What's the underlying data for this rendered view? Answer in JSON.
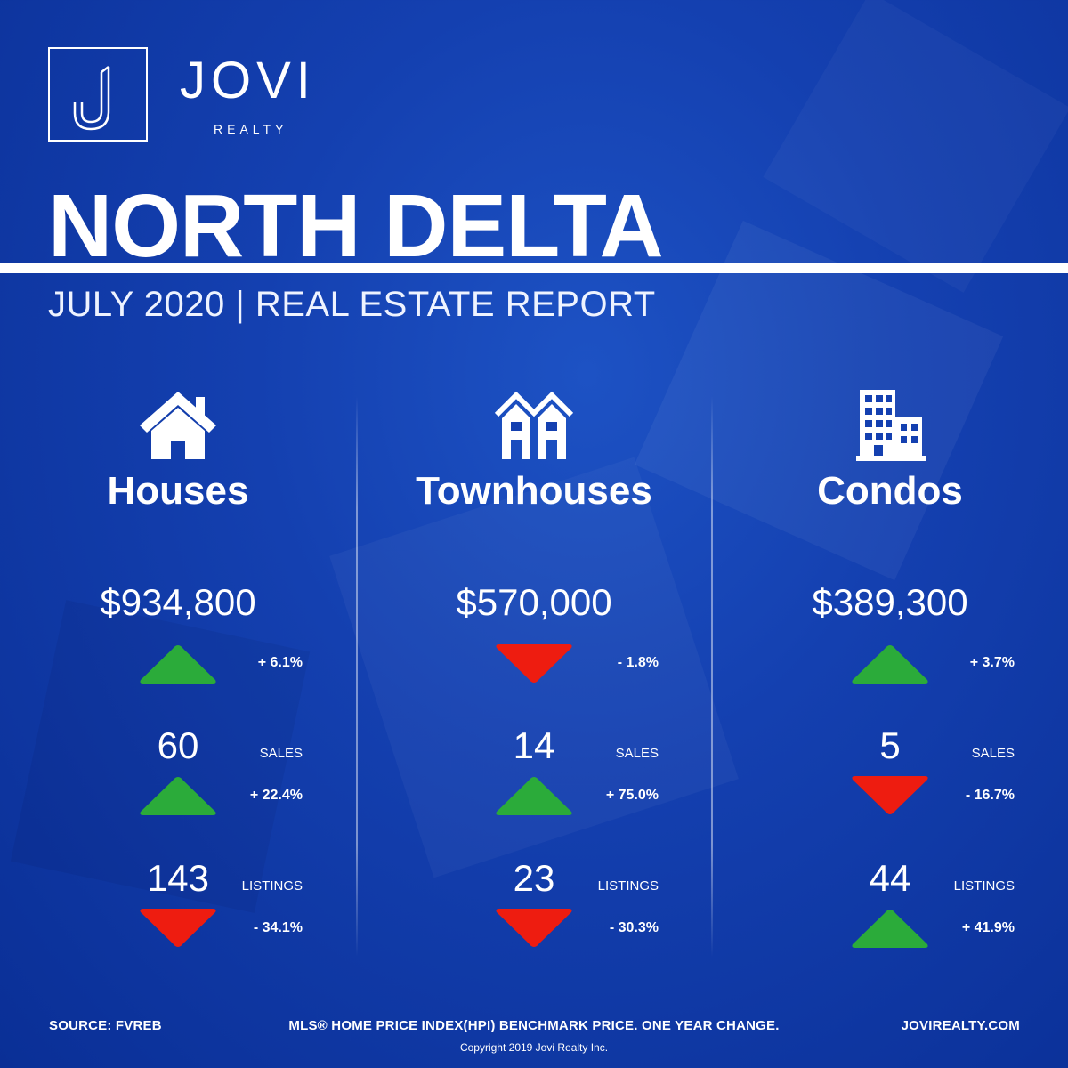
{
  "brand": {
    "name": "JOVI",
    "subtitle": "REALTY"
  },
  "title": "NORTH DELTA",
  "subtitle": "JULY 2020 | REAL ESTATE REPORT",
  "colors": {
    "background": "#1440b0",
    "up": "#2bab3a",
    "down": "#ee1c10",
    "text": "#ffffff"
  },
  "columns": [
    {
      "name": "Houses",
      "icon": "house-icon",
      "price": "$934,800",
      "price_change": "+ 6.1%",
      "price_dir": "up",
      "sales": "60",
      "sales_label": "SALES",
      "sales_change": "+ 22.4%",
      "sales_dir": "up",
      "listings": "143",
      "listings_label": "LISTINGS",
      "listings_change": "- 34.1%",
      "listings_dir": "down"
    },
    {
      "name": "Townhouses",
      "icon": "townhouse-icon",
      "price": "$570,000",
      "price_change": "- 1.8%",
      "price_dir": "down",
      "sales": "14",
      "sales_label": "SALES",
      "sales_change": "+ 75.0%",
      "sales_dir": "up",
      "listings": "23",
      "listings_label": "LISTINGS",
      "listings_change": "- 30.3%",
      "listings_dir": "down"
    },
    {
      "name": "Condos",
      "icon": "condo-building-icon",
      "price": "$389,300",
      "price_change": "+ 3.7%",
      "price_dir": "up",
      "sales": "5",
      "sales_label": "SALES",
      "sales_change": "- 16.7%",
      "sales_dir": "down",
      "listings": "44",
      "listings_label": "LISTINGS",
      "listings_change": "+ 41.9%",
      "listings_dir": "up"
    }
  ],
  "footer": {
    "source": "SOURCE:  FVREB",
    "note": "MLS® HOME PRICE INDEX(HPI) BENCHMARK PRICE. ONE YEAR CHANGE.",
    "website": "JOVIREALTY.COM",
    "copyright": "Copyright 2019 Jovi Realty Inc."
  }
}
